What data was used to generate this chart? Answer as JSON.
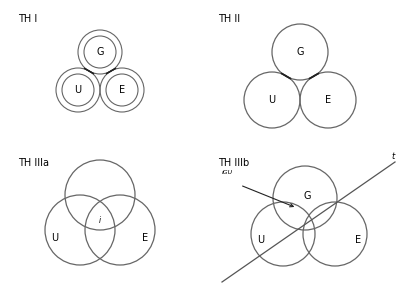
{
  "title_TH1": "TH I",
  "title_TH2": "TH II",
  "title_TH3a": "TH IIIa",
  "title_TH3b": "TH IIIb",
  "label_G": "G",
  "label_U": "U",
  "label_E": "E",
  "label_i": "i",
  "label_iGU": "iGU",
  "label_t": "t",
  "bg_color": "#ffffff",
  "circle_color": "#666666",
  "line_color": "#222222",
  "font_size_label": 7,
  "font_size_title": 7,
  "font_size_small": 5.5
}
